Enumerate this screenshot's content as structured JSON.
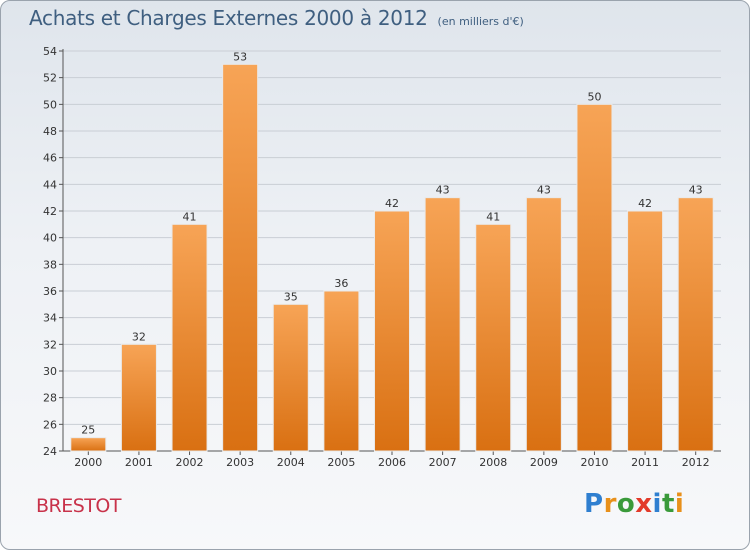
{
  "header": {
    "title": "Achats et Charges Externes 2000 à 2012",
    "subtitle": "(en milliers d'€)"
  },
  "footer": {
    "location": "BRESTOT",
    "brand": "Proxiti"
  },
  "colors": {
    "bar_top": "#f7a456",
    "bar_bottom": "#d97012",
    "title": "#3f5f80",
    "location": "#c8324a"
  },
  "chart_data": {
    "type": "bar",
    "title": "Achats et Charges Externes 2000 à 2012",
    "subtitle": "(en milliers d'€)",
    "categories": [
      "2000",
      "2001",
      "2002",
      "2003",
      "2004",
      "2005",
      "2006",
      "2007",
      "2008",
      "2009",
      "2010",
      "2011",
      "2012"
    ],
    "values": [
      25,
      32,
      41,
      53,
      35,
      36,
      42,
      43,
      41,
      43,
      50,
      42,
      43
    ],
    "ylim": [
      24,
      54
    ],
    "yticks": [
      24,
      26,
      28,
      30,
      32,
      34,
      36,
      38,
      40,
      42,
      44,
      46,
      48,
      50,
      52,
      54
    ],
    "grid": true,
    "legend": "none"
  }
}
